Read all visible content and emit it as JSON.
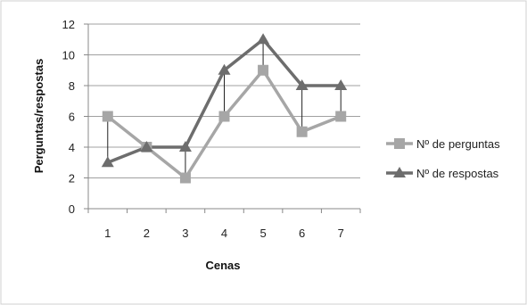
{
  "chart_data": {
    "type": "line",
    "title": "",
    "xlabel": "Cenas",
    "ylabel": "Perguntas/respostas",
    "categories": [
      "1",
      "2",
      "3",
      "4",
      "5",
      "6",
      "7"
    ],
    "ylim": [
      0,
      12
    ],
    "yticks": [
      0,
      2,
      4,
      6,
      8,
      10,
      12
    ],
    "grid": true,
    "legend": "right",
    "series": [
      {
        "name": "Nº de perguntas",
        "values": [
          6,
          4,
          2,
          6,
          9,
          5,
          6
        ],
        "color": "#a6a6a6",
        "marker": "square"
      },
      {
        "name": "Nº de respostas",
        "values": [
          3,
          4,
          4,
          9,
          11,
          8,
          8
        ],
        "color": "#6d6d6d",
        "marker": "triangle"
      }
    ],
    "annotations": "vertical connector lines between the two series at each category"
  }
}
